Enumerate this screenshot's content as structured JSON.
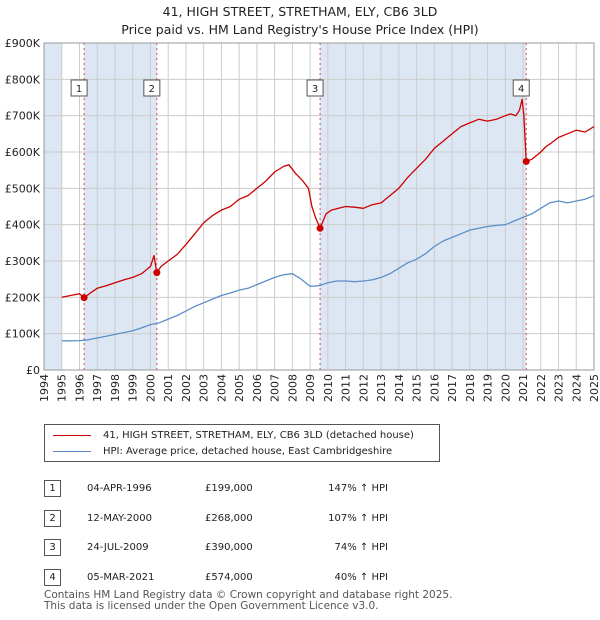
{
  "title_line1": "41, HIGH STREET, STRETHAM, ELY, CB6 3LD",
  "title_line2": "Price paid vs. HM Land Registry's House Price Index (HPI)",
  "legend": {
    "property": "41, HIGH STREET, STRETHAM, ELY, CB6 3LD (detached house)",
    "hpi": "HPI: Average price, detached house, East Cambridgeshire"
  },
  "sales": [
    {
      "num": "1",
      "date": "04-APR-1996",
      "price": "£199,000",
      "hpi": "147% ↑ HPI"
    },
    {
      "num": "2",
      "date": "12-MAY-2000",
      "price": "£268,000",
      "hpi": "107% ↑ HPI"
    },
    {
      "num": "3",
      "date": "24-JUL-2009",
      "price": "£390,000",
      "hpi": "74% ↑ HPI"
    },
    {
      "num": "4",
      "date": "05-MAR-2021",
      "price": "£574,000",
      "hpi": "40% ↑ HPI"
    }
  ],
  "footer_line1": "Contains HM Land Registry data © Crown copyright and database right 2025.",
  "footer_line2": "This data is licensed under the Open Government Licence v3.0.",
  "colors": {
    "property": "#cc0000",
    "hpi": "#5b8fc9",
    "band": "#dde6f3",
    "grid": "#cccccc"
  },
  "chart_data": {
    "type": "line",
    "title": "41, HIGH STREET, STRETHAM, ELY, CB6 3LD — Price paid vs. HM Land Registry's House Price Index (HPI)",
    "xlabel": "",
    "ylabel": "",
    "xlim": [
      1994,
      2025
    ],
    "ylim": [
      0,
      900000
    ],
    "x_ticks": [
      1994,
      1995,
      1996,
      1997,
      1998,
      1999,
      2000,
      2001,
      2002,
      2003,
      2004,
      2005,
      2006,
      2007,
      2008,
      2009,
      2010,
      2011,
      2012,
      2013,
      2014,
      2015,
      2016,
      2017,
      2018,
      2019,
      2020,
      2021,
      2022,
      2023,
      2024,
      2025
    ],
    "y_ticks": [
      0,
      100000,
      200000,
      300000,
      400000,
      500000,
      600000,
      700000,
      800000,
      900000
    ],
    "y_tick_labels": [
      "£0",
      "£100K",
      "£200K",
      "£300K",
      "£400K",
      "£500K",
      "£600K",
      "£700K",
      "£800K",
      "£900K"
    ],
    "series": [
      {
        "name": "41, HIGH STREET, STRETHAM, ELY, CB6 3LD (detached house)",
        "x": [
          1995.0,
          1995.5,
          1996.0,
          1996.26,
          1996.7,
          1997.0,
          1997.5,
          1998.0,
          1998.5,
          1999.0,
          1999.5,
          2000.0,
          2000.2,
          2000.36,
          2000.6,
          2001.0,
          2001.5,
          2002.0,
          2002.5,
          2003.0,
          2003.5,
          2004.0,
          2004.5,
          2005.0,
          2005.5,
          2006.0,
          2006.5,
          2007.0,
          2007.5,
          2007.8,
          2008.2,
          2008.6,
          2008.9,
          2009.1,
          2009.3,
          2009.56,
          2009.9,
          2010.2,
          2010.6,
          2011.0,
          2011.5,
          2012.0,
          2012.5,
          2013.0,
          2013.5,
          2014.0,
          2014.5,
          2015.0,
          2015.5,
          2016.0,
          2016.5,
          2017.0,
          2017.5,
          2018.0,
          2018.5,
          2019.0,
          2019.5,
          2020.0,
          2020.3,
          2020.6,
          2020.8,
          2020.95,
          2021.05,
          2021.18,
          2021.5,
          2022.0,
          2022.3,
          2022.6,
          2023.0,
          2023.5,
          2024.0,
          2024.5,
          2025.0
        ],
        "values": [
          200000,
          205000,
          210000,
          199000,
          215000,
          225000,
          232000,
          240000,
          248000,
          255000,
          265000,
          285000,
          315000,
          268000,
          285000,
          300000,
          318000,
          345000,
          375000,
          405000,
          425000,
          440000,
          450000,
          470000,
          480000,
          500000,
          520000,
          545000,
          560000,
          565000,
          540000,
          520000,
          500000,
          450000,
          420000,
          390000,
          430000,
          440000,
          445000,
          450000,
          448000,
          445000,
          455000,
          460000,
          480000,
          500000,
          530000,
          555000,
          580000,
          610000,
          630000,
          650000,
          670000,
          680000,
          690000,
          685000,
          690000,
          700000,
          705000,
          700000,
          715000,
          745000,
          700000,
          574000,
          580000,
          600000,
          615000,
          625000,
          640000,
          650000,
          660000,
          655000,
          670000
        ]
      },
      {
        "name": "HPI: Average price, detached house, East Cambridgeshire",
        "x": [
          1995.0,
          1995.5,
          1996.0,
          1996.5,
          1997.0,
          1997.5,
          1998.0,
          1998.5,
          1999.0,
          1999.5,
          2000.0,
          2000.5,
          2001.0,
          2001.5,
          2002.0,
          2002.5,
          2003.0,
          2003.5,
          2004.0,
          2004.5,
          2005.0,
          2005.5,
          2006.0,
          2006.5,
          2007.0,
          2007.5,
          2008.0,
          2008.5,
          2009.0,
          2009.5,
          2010.0,
          2010.5,
          2011.0,
          2011.5,
          2012.0,
          2012.5,
          2013.0,
          2013.5,
          2014.0,
          2014.5,
          2015.0,
          2015.5,
          2016.0,
          2016.5,
          2017.0,
          2017.5,
          2018.0,
          2018.5,
          2019.0,
          2019.5,
          2020.0,
          2020.5,
          2021.0,
          2021.5,
          2022.0,
          2022.5,
          2023.0,
          2023.5,
          2024.0,
          2024.5,
          2025.0
        ],
        "values": [
          80000,
          80500,
          81000,
          83000,
          88000,
          93000,
          98000,
          103000,
          108000,
          116000,
          125000,
          130000,
          140000,
          150000,
          162000,
          175000,
          185000,
          195000,
          205000,
          212000,
          220000,
          225000,
          235000,
          245000,
          255000,
          262000,
          265000,
          250000,
          230000,
          232000,
          240000,
          245000,
          245000,
          243000,
          245000,
          248000,
          255000,
          265000,
          280000,
          295000,
          305000,
          320000,
          340000,
          355000,
          365000,
          375000,
          385000,
          390000,
          395000,
          398000,
          400000,
          410000,
          420000,
          430000,
          445000,
          460000,
          465000,
          460000,
          465000,
          470000,
          480000
        ]
      }
    ],
    "annotations": [
      {
        "label": "1",
        "x": 1996.26,
        "y": 199000
      },
      {
        "label": "2",
        "x": 2000.36,
        "y": 268000
      },
      {
        "label": "3",
        "x": 2009.56,
        "y": 390000
      },
      {
        "label": "4",
        "x": 2021.18,
        "y": 574000
      }
    ],
    "shaded_ranges": [
      [
        1994.0,
        1995.0
      ],
      [
        1996.26,
        2000.36
      ],
      [
        2009.56,
        2021.18
      ],
      [
        2025.0,
        2025.2
      ]
    ],
    "grid": true
  }
}
